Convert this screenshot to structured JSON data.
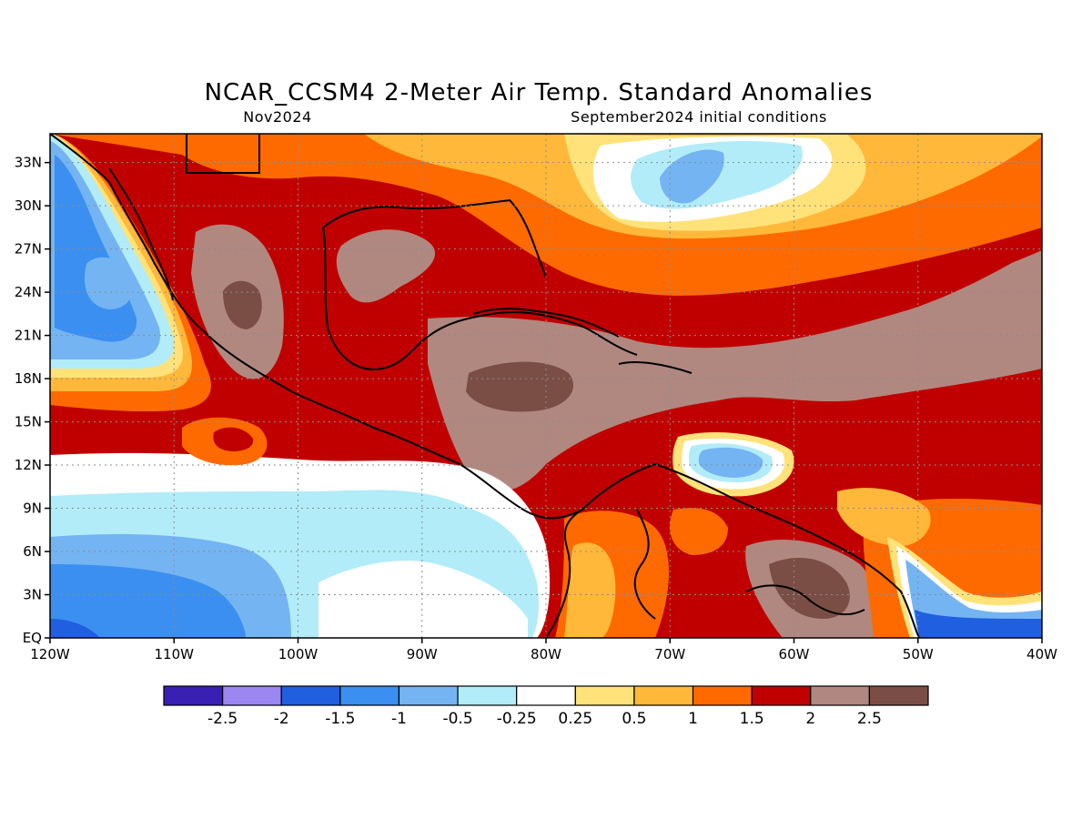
{
  "title": "NCAR_CCSM4 2-Meter Air Temp. Standard Anomalies",
  "subtitle_left": "Nov2024",
  "subtitle_right": "September2024 initial conditions",
  "map": {
    "lon_range": [
      -120,
      -40
    ],
    "lat_range": [
      0,
      35
    ],
    "lon_ticks": [
      {
        "value": -120,
        "label": "120W"
      },
      {
        "value": -110,
        "label": "110W"
      },
      {
        "value": -100,
        "label": "100W"
      },
      {
        "value": -90,
        "label": "90W"
      },
      {
        "value": -80,
        "label": "80W"
      },
      {
        "value": -70,
        "label": "70W"
      },
      {
        "value": -60,
        "label": "60W"
      },
      {
        "value": -50,
        "label": "50W"
      },
      {
        "value": -40,
        "label": "40W"
      }
    ],
    "lat_ticks": [
      {
        "value": 0,
        "label": "EQ"
      },
      {
        "value": 3,
        "label": "3N"
      },
      {
        "value": 6,
        "label": "6N"
      },
      {
        "value": 9,
        "label": "9N"
      },
      {
        "value": 12,
        "label": "12N"
      },
      {
        "value": 15,
        "label": "15N"
      },
      {
        "value": 18,
        "label": "18N"
      },
      {
        "value": 21,
        "label": "21N"
      },
      {
        "value": 24,
        "label": "24N"
      },
      {
        "value": 27,
        "label": "27N"
      },
      {
        "value": 30,
        "label": "30N"
      },
      {
        "value": 33,
        "label": "33N"
      }
    ],
    "grid": true
  },
  "colorbar": {
    "colors": [
      "#3a1fb5",
      "#9b86f2",
      "#1f5fe0",
      "#3b8ff0",
      "#74b4f2",
      "#b2ecf8",
      "#ffffff",
      "#ffe37a",
      "#ffb83a",
      "#ff6a00",
      "#c00000",
      "#b08880",
      "#7a4e44"
    ],
    "labels": [
      "-2.5",
      "-2",
      "-1.5",
      "-1",
      "-0.5",
      "-0.25",
      "0.25",
      "0.5",
      "1",
      "1.5",
      "2",
      "2.5"
    ]
  },
  "anomaly_fields": [
    {
      "name": "base",
      "level": 2
    },
    {
      "name": "pacific-cool-band",
      "level": 0.25
    },
    {
      "name": "pacific-cold-core",
      "level": -1
    },
    {
      "name": "gulf-caribbean-warm",
      "level": 2
    },
    {
      "name": "caribbean-max",
      "level": 2.5
    },
    {
      "name": "guiana-max",
      "level": 2.5
    },
    {
      "name": "atlantic-cool-eddy",
      "level": -1
    },
    {
      "name": "north-atlantic-cool-eddy",
      "level": -1
    },
    {
      "name": "equatorial-atlantic-cool",
      "level": -1.5
    }
  ]
}
